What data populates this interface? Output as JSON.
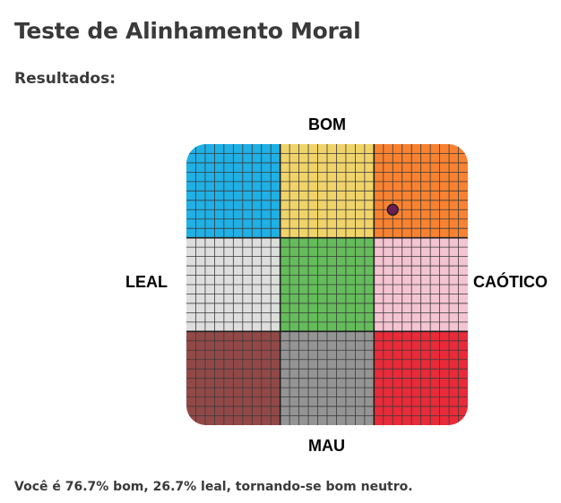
{
  "page": {
    "title": "Teste de Alinhamento Moral",
    "subtitle": "Resultados:",
    "result_text": "Você é 76.7% bom, 26.7% leal, tornando-se bom neutro."
  },
  "chart_data": {
    "type": "scatter",
    "title": "",
    "axes": {
      "top": "BOM",
      "bottom": "MAU",
      "left": "LEAL",
      "right": "CAÓTICO"
    },
    "grid": {
      "rows": 3,
      "cols": 3,
      "cells_per_block": 10,
      "block_colors": [
        [
          "#1fb0e6",
          "#f0d46a",
          "#f98230"
        ],
        [
          "#dedede",
          "#64bc5a",
          "#f4c4d2"
        ],
        [
          "#934848",
          "#949494",
          "#ea2a38"
        ]
      ]
    },
    "point": {
      "good_percent": 76.7,
      "lawful_percent": 26.7,
      "color": "#6a1d4e"
    }
  }
}
